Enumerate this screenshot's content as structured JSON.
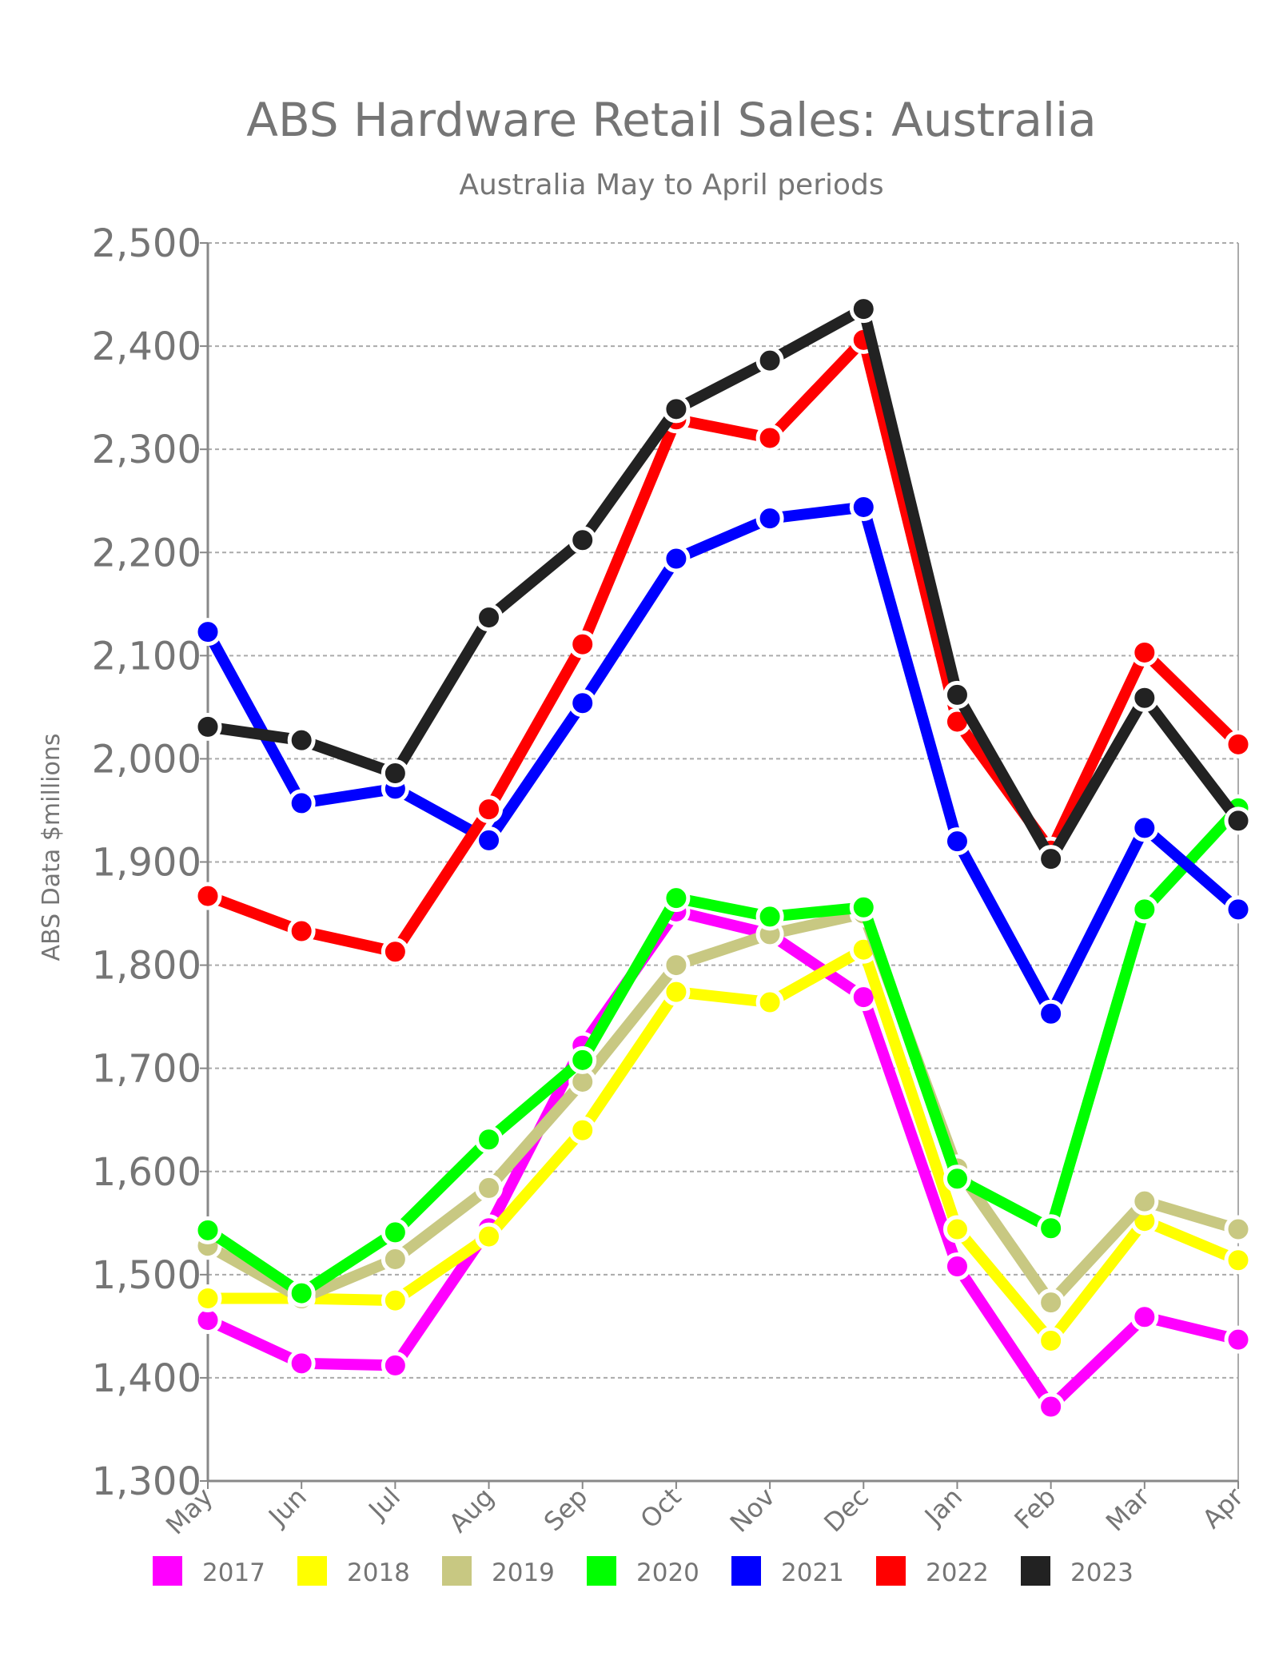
{
  "chart_data": {
    "type": "line",
    "title": "ABS Hardware Retail Sales: Australia",
    "subtitle": "Australia May to April periods",
    "xlabel": "",
    "ylabel": "ABS Data $millions",
    "ylim": [
      1300,
      2500
    ],
    "yticks": [
      1300,
      1400,
      1500,
      1600,
      1700,
      1800,
      1900,
      2000,
      2100,
      2200,
      2300,
      2400,
      2500
    ],
    "ytick_labels": [
      "1,300",
      "1,400",
      "1,500",
      "1,600",
      "1,700",
      "1,800",
      "1,900",
      "2,000",
      "2,100",
      "2,200",
      "2,300",
      "2,400",
      "2,500"
    ],
    "grid": true,
    "legend_position": "bottom",
    "categories": [
      "May",
      "Jun",
      "Jul",
      "Aug",
      "Sep",
      "Oct",
      "Nov",
      "Dec",
      "Jan",
      "Feb",
      "Mar",
      "Apr"
    ],
    "series": [
      {
        "name": "2017",
        "color": "#ff00ff",
        "values": [
          1456,
          1414,
          1412,
          1545,
          1722,
          1852,
          1830,
          1769,
          1508,
          1372,
          1459,
          1437
        ]
      },
      {
        "name": "2018",
        "color": "#ffff00",
        "values": [
          1477,
          1477,
          1475,
          1537,
          1640,
          1774,
          1764,
          1815,
          1544,
          1436,
          1552,
          1514
        ]
      },
      {
        "name": "2019",
        "color": "#c8c882",
        "values": [
          1528,
          1477,
          1515,
          1584,
          1687,
          1800,
          1830,
          1850,
          1603,
          1473,
          1571,
          1544
        ]
      },
      {
        "name": "2020",
        "color": "#00ff00",
        "values": [
          1543,
          1482,
          1541,
          1631,
          1708,
          1865,
          1847,
          1856,
          1593,
          1545,
          1854,
          1952
        ]
      },
      {
        "name": "2021",
        "color": "#0000ff",
        "values": [
          2123,
          1957,
          1971,
          1921,
          2054,
          2194,
          2233,
          2244,
          1920,
          1753,
          1933,
          1854
        ]
      },
      {
        "name": "2022",
        "color": "#ff0000",
        "values": [
          1867,
          1833,
          1813,
          1951,
          2111,
          2329,
          2311,
          2406,
          2036,
          1911,
          2103,
          2014
        ]
      },
      {
        "name": "2023",
        "color": "#222222",
        "values": [
          2031,
          2018,
          1986,
          2137,
          2212,
          2339,
          2386,
          2436,
          2062,
          1903,
          2059,
          1940
        ]
      }
    ]
  }
}
